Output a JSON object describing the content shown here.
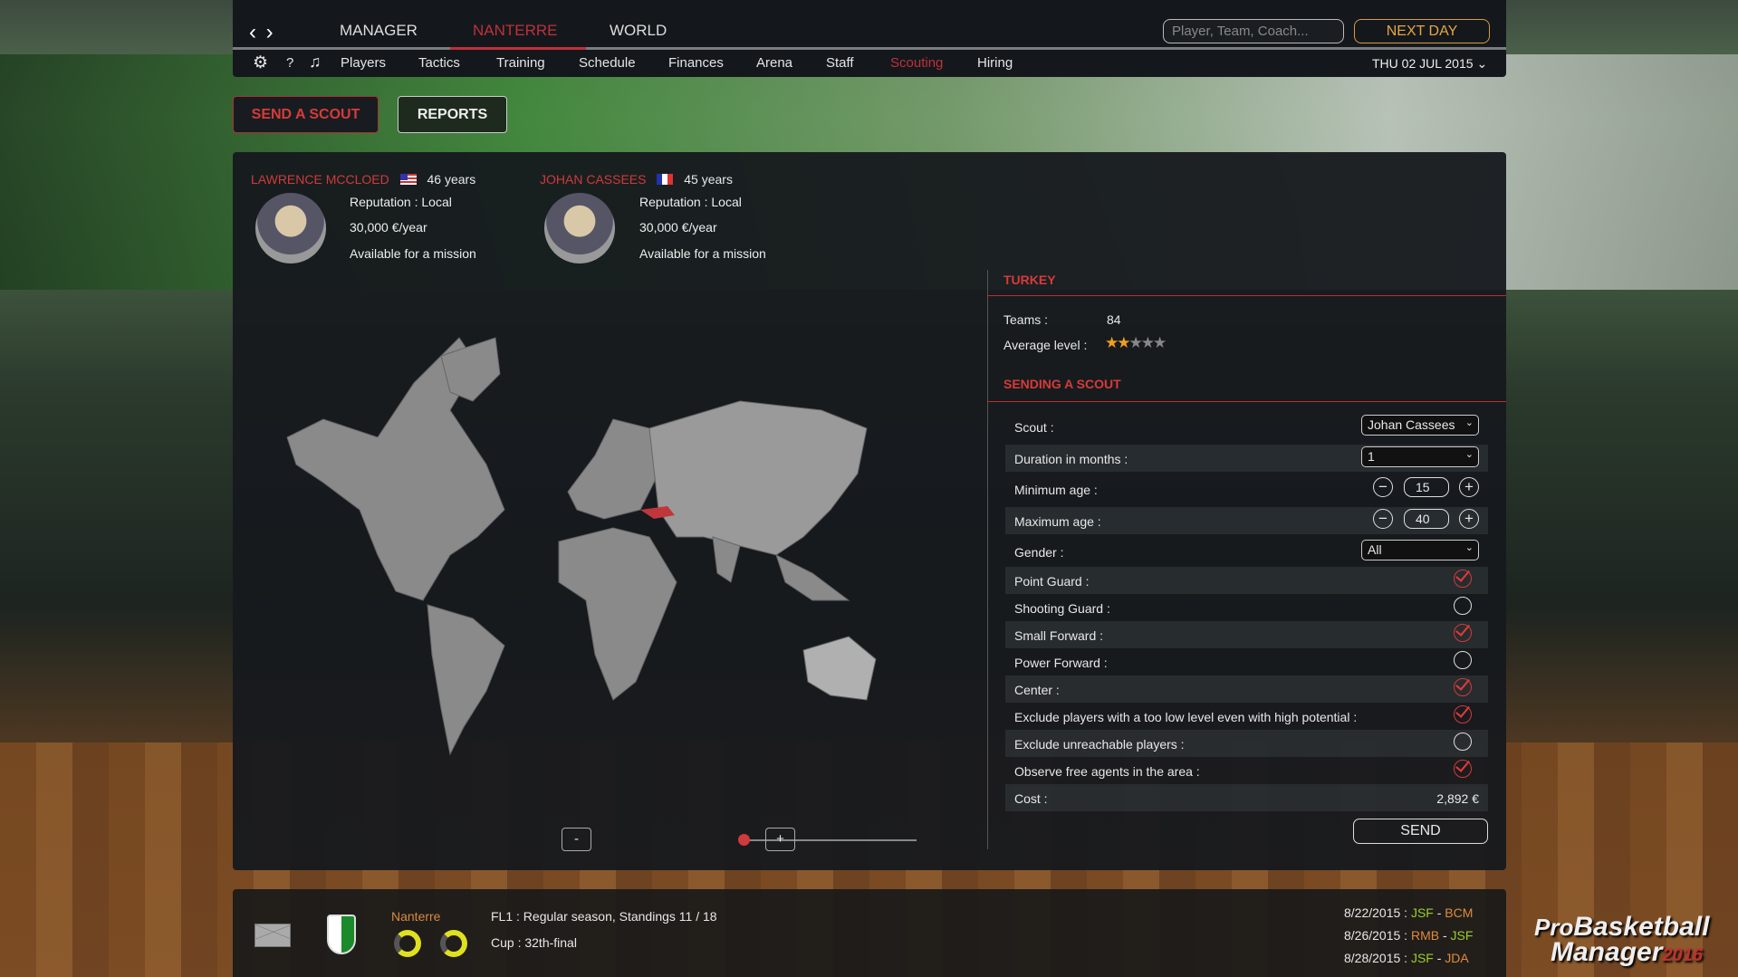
{
  "nav": {
    "main": [
      "MANAGER",
      "NANTERRE",
      "WORLD"
    ],
    "active_main": "NANTERRE",
    "search_placeholder": "Player, Team, Coach...",
    "next_day": "NEXT DAY",
    "sub": [
      "Players",
      "Tactics",
      "Training",
      "Schedule",
      "Finances",
      "Arena",
      "Staff",
      "Scouting",
      "Hiring"
    ],
    "active_sub": "Scouting",
    "date": "THU 02 JUL 2015"
  },
  "actions": {
    "send_scout": "SEND A SCOUT",
    "reports": "REPORTS"
  },
  "scouts": [
    {
      "name": "LAWRENCE MCCLOED",
      "flag": "us",
      "age": "46 years",
      "reputation": "Reputation : Local",
      "salary": "30,000 €/year",
      "status": "Available for a mission"
    },
    {
      "name": "JOHAN CASSEES",
      "flag": "fr",
      "age": "45 years",
      "reputation": "Reputation : Local",
      "salary": "30,000 €/year",
      "status": "Available for a mission"
    }
  ],
  "country": {
    "title": "TURKEY",
    "teams_label": "Teams :",
    "teams": "84",
    "avg_label": "Average level :",
    "avg_stars": 2,
    "max_stars": 5
  },
  "form": {
    "title": "SENDING A SCOUT",
    "scout_label": "Scout :",
    "scout_value": "Johan Cassees",
    "duration_label": "Duration in months :",
    "duration_value": "1",
    "min_age_label": "Minimum age :",
    "min_age": "15",
    "max_age_label": "Maximum age :",
    "max_age": "40",
    "gender_label": "Gender :",
    "gender_value": "All",
    "checks": [
      {
        "label": "Point Guard :",
        "checked": true
      },
      {
        "label": "Shooting Guard :",
        "checked": false
      },
      {
        "label": "Small Forward :",
        "checked": true
      },
      {
        "label": "Power Forward :",
        "checked": false
      },
      {
        "label": "Center :",
        "checked": true
      },
      {
        "label": "Exclude players with a too low level even with high potential :",
        "checked": true
      },
      {
        "label": "Exclude unreachable players :",
        "checked": false
      },
      {
        "label": "Observe free agents in the area :",
        "checked": true
      }
    ],
    "cost_label": "Cost :",
    "cost": "2,892 €",
    "send": "SEND"
  },
  "map": {
    "zoom_out": "-",
    "zoom_in": "+",
    "zoom_level": 0,
    "selected_country": "Turkey"
  },
  "footer": {
    "team": "Nanterre",
    "league": "FL1 : Regular season, Standings 11 / 18",
    "cup": "Cup : 32th-final",
    "matches": [
      {
        "date": "8/22/2015 :",
        "home": "JSF",
        "away": "BCM"
      },
      {
        "date": "8/26/2015 :",
        "home": "RMB",
        "away": "JSF"
      },
      {
        "date": "8/28/2015 :",
        "home": "JSF",
        "away": "JDA"
      }
    ],
    "logo": "ProBasketball Manager 2016"
  },
  "colors": {
    "accent": "#d03a3a",
    "next_day": "#e8a640",
    "own_team": "#9ccd2a",
    "opponent": "#e08a3a"
  }
}
